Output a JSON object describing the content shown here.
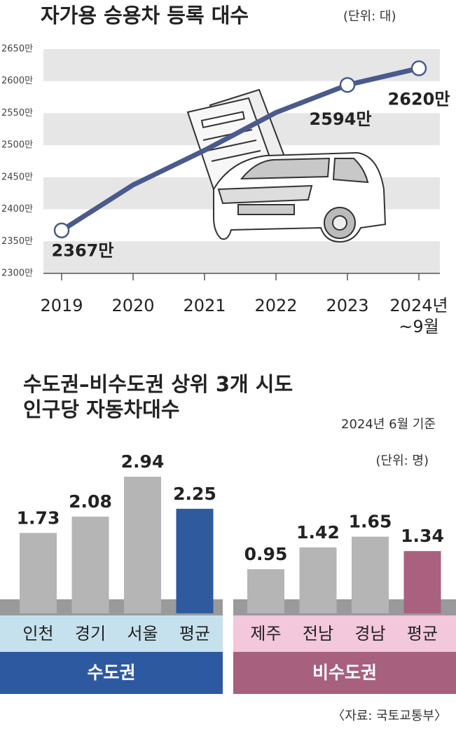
{
  "chart_data": [
    {
      "type": "line",
      "title": "자가용 승용차 등록 대수",
      "unit": "(단위: 대)",
      "categories": [
        "2019",
        "2020",
        "2021",
        "2022",
        "2023",
        "2024년\n~9월"
      ],
      "values": [
        2367,
        2438,
        2492,
        2551,
        2594,
        2620
      ],
      "value_labels": [
        "2367만",
        null,
        null,
        null,
        "2594만",
        "2620만"
      ],
      "color": "#4a5a8c",
      "ylim": [
        2300,
        2650
      ],
      "yticks": [
        {
          "value": 2300,
          "label": "2300만"
        },
        {
          "value": 2350,
          "label": "2350만"
        },
        {
          "value": 2400,
          "label": "2400만"
        },
        {
          "value": 2450,
          "label": "2450만"
        },
        {
          "value": 2500,
          "label": "2500만"
        },
        {
          "value": 2550,
          "label": "2550만"
        },
        {
          "value": 2600,
          "label": "2600만"
        },
        {
          "value": 2650,
          "label": "2650만"
        }
      ],
      "grid": true
    },
    {
      "type": "grouped-bar",
      "title": "수도권–비수도권 상위 3개 시도\n인구당 자동차대수",
      "subtitle": "2024년 6월 기준",
      "unit": "(단위: 명)",
      "groups": [
        {
          "name": "수도권",
          "categories": [
            "인천",
            "경기",
            "서울",
            "평균"
          ],
          "values": [
            1.73,
            2.08,
            2.94,
            2.25
          ],
          "value_labels": [
            "1.73",
            "2.08",
            "2.94",
            "2.25"
          ],
          "colors": [
            "#b5b5b5",
            "#b5b5b5",
            "#b5b5b5",
            "#2f5a9e"
          ],
          "band_color": "#c5e1ee",
          "group_color": "#2d59a1"
        },
        {
          "name": "비수도권",
          "categories": [
            "제주",
            "전남",
            "경남",
            "평균"
          ],
          "values": [
            0.95,
            1.42,
            1.65,
            1.34
          ],
          "value_labels": [
            "0.95",
            "1.42",
            "1.65",
            "1.34"
          ],
          "colors": [
            "#b5b5b5",
            "#b5b5b5",
            "#b5b5b5",
            "#a9617f"
          ],
          "band_color": "#f3c7dc",
          "group_color": "#a8607f"
        }
      ],
      "source": "〈자료: 국토교통부〉"
    }
  ]
}
